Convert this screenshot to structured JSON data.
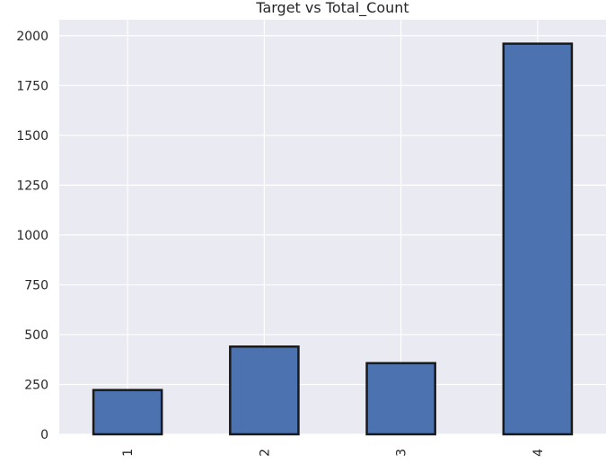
{
  "chart_data": {
    "type": "bar",
    "title": "Target vs Total_Count",
    "xlabel": "",
    "ylabel": "",
    "categories": [
      "1",
      "2",
      "3",
      "4"
    ],
    "values": [
      222,
      440,
      357,
      1960
    ],
    "ylim": [
      0,
      2080
    ],
    "yticks": [
      "0",
      "250",
      "500",
      "750",
      "1000",
      "1250",
      "1500",
      "1750",
      "2000"
    ],
    "ytick_values": [
      0,
      250,
      500,
      750,
      1000,
      1250,
      1500,
      1750,
      2000
    ],
    "grid": true,
    "legend": "none",
    "colors": {
      "background": "#eaeaf2",
      "bar_fill": "#4c72b0",
      "bar_edge": "#1a1a1a",
      "grid": "#ffffff"
    }
  }
}
